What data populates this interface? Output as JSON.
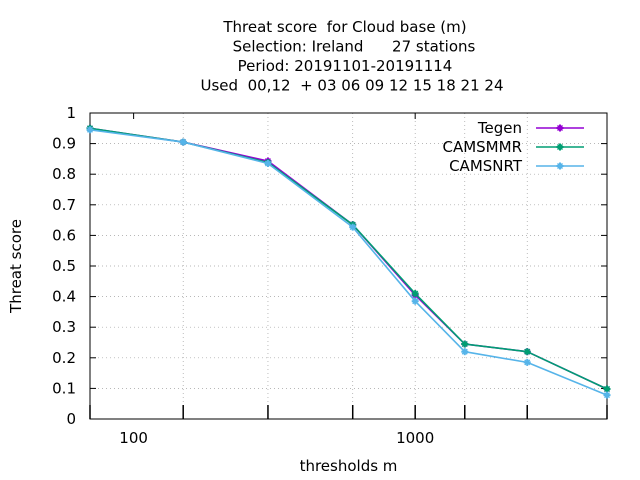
{
  "chart_data": {
    "type": "line",
    "title_lines": [
      "Threat score  for Cloud base (m)",
      "Selection: Ireland      27 stations",
      "Period: 20191101-20191114",
      "Used  00,12  + 03 06 09 12 15 18 21 24"
    ],
    "xlabel": "thresholds m",
    "ylabel": "Threat score",
    "xscale": "log",
    "xlim": [
      70,
      4800
    ],
    "ylim": [
      0,
      1
    ],
    "xticks": [
      100,
      1000
    ],
    "xtick_labels": [
      "100",
      "1000"
    ],
    "yticks": [
      0,
      0.1,
      0.2,
      0.3,
      0.4,
      0.5,
      0.6,
      0.7,
      0.8,
      0.9,
      1
    ],
    "ytick_labels": [
      "0",
      "0.1",
      "0.2",
      "0.3",
      "0.4",
      "0.5",
      "0.6",
      "0.7",
      "0.8",
      "0.9",
      "1"
    ],
    "grid": true,
    "legend_position": "top-right",
    "x": [
      70,
      150,
      300,
      600,
      1000,
      1500,
      2500,
      4800
    ],
    "series": [
      {
        "name": "Tegen",
        "color": "#9400d3",
        "values": [
          0.95,
          0.905,
          0.843,
          0.635,
          0.405,
          0.245,
          0.22,
          0.098
        ]
      },
      {
        "name": "CAMSMMR",
        "color": "#009e73",
        "values": [
          0.95,
          0.905,
          0.838,
          0.635,
          0.41,
          0.245,
          0.22,
          0.098
        ]
      },
      {
        "name": "CAMSNRT",
        "color": "#56b4e9",
        "values": [
          0.945,
          0.905,
          0.835,
          0.627,
          0.385,
          0.22,
          0.185,
          0.078
        ]
      }
    ]
  }
}
